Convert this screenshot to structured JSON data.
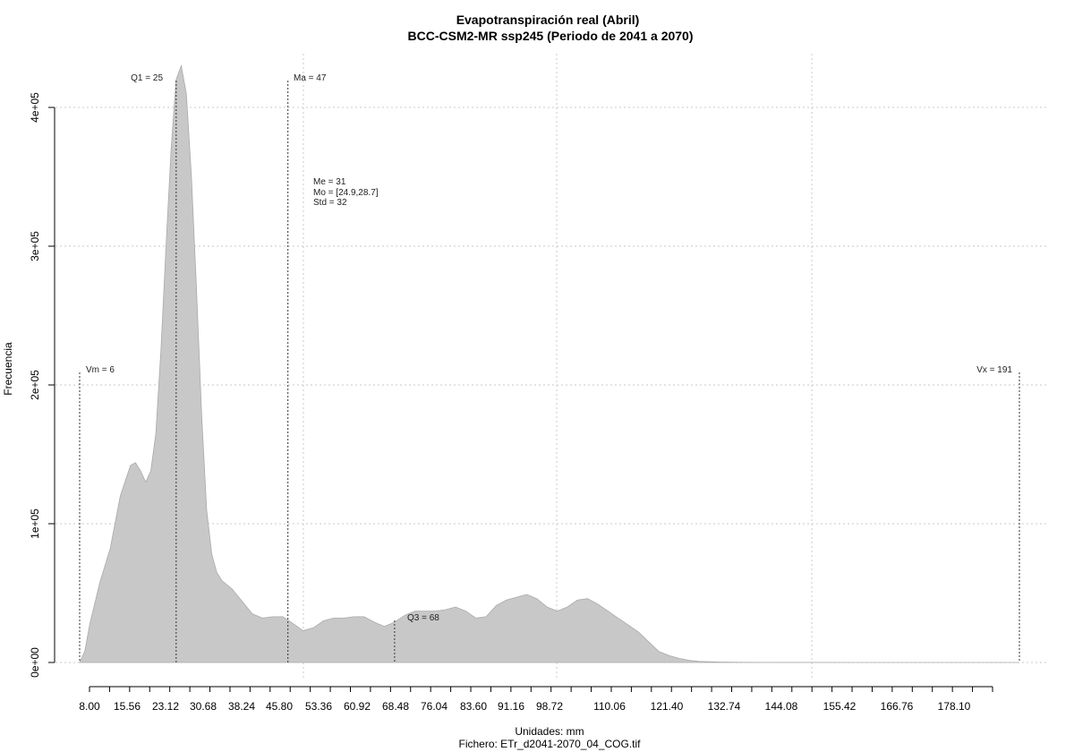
{
  "chart_data": {
    "type": "area",
    "title": "Evapotranspiración real (Abril)",
    "subtitle": "BCC-CSM2-MR ssp245 (Periodo de 2041 a 2070)",
    "xlabel": "Unidades: mm",
    "ylabel": "Frecuencia",
    "footer": "Fichero: ETr_d2041-2070_04_COG.tif",
    "xlim": [
      6,
      191
    ],
    "ylim": [
      0,
      400000
    ],
    "x_ticks": [
      "8.00",
      "15.56",
      "23.12",
      "30.68",
      "38.24",
      "45.80",
      "53.36",
      "60.92",
      "68.48",
      "76.04",
      "83.60",
      "91.16",
      "98.72",
      "110.06",
      "121.40",
      "132.74",
      "144.08",
      "155.42",
      "166.76",
      "178.10"
    ],
    "y_ticks": [
      "0e+00",
      "1e+05",
      "2e+05",
      "3e+05",
      "4e+05"
    ],
    "fill_color": "#c8c8c8",
    "series": [
      {
        "x": [
          6,
          7,
          8,
          10,
          12,
          14,
          16,
          17,
          18,
          19,
          20,
          21,
          22,
          23,
          24,
          25,
          26,
          27,
          28,
          29,
          30,
          31,
          32,
          33,
          34,
          36,
          38,
          40,
          42,
          44,
          46,
          48,
          50,
          52,
          54,
          56,
          58,
          60,
          62,
          64,
          66,
          68,
          70,
          72,
          74,
          76,
          78,
          80,
          82,
          84,
          86,
          88,
          90,
          92,
          94,
          96,
          98,
          100,
          102,
          104,
          106,
          108,
          110,
          112,
          114,
          116,
          118,
          120,
          122,
          124,
          126,
          128,
          130,
          132,
          134,
          136,
          140,
          150,
          160,
          170,
          180,
          191
        ],
        "y": [
          0,
          8000,
          28000,
          58000,
          82000,
          120000,
          142000,
          144000,
          138000,
          130000,
          138000,
          165000,
          225000,
          300000,
          370000,
          420000,
          430000,
          410000,
          350000,
          270000,
          180000,
          110000,
          78000,
          65000,
          59000,
          53000,
          44000,
          35000,
          32000,
          33000,
          33000,
          28000,
          23000,
          25000,
          30000,
          32000,
          32000,
          33000,
          33000,
          29000,
          26000,
          29000,
          34000,
          37000,
          37000,
          37000,
          38000,
          40000,
          37000,
          32000,
          33000,
          41000,
          45000,
          47000,
          49000,
          46000,
          40000,
          37000,
          40000,
          45000,
          46000,
          42000,
          37000,
          32000,
          27000,
          22000,
          15000,
          8000,
          5000,
          3000,
          1500,
          800,
          500,
          300,
          200,
          100,
          80,
          50,
          30,
          20,
          10,
          0
        ]
      }
    ],
    "markers": [
      {
        "label": "Vm = 6",
        "x": 6
      },
      {
        "label": "Q1 = 25",
        "x": 25
      },
      {
        "label": "Ma = 47",
        "x": 47
      },
      {
        "label": "Q3 = 68",
        "x": 68
      },
      {
        "label": "Vx = 191",
        "x": 191
      }
    ],
    "stats": [
      "Me = 31",
      "Mo = [24.9,28.7]",
      "Std = 32"
    ],
    "grid": true
  }
}
